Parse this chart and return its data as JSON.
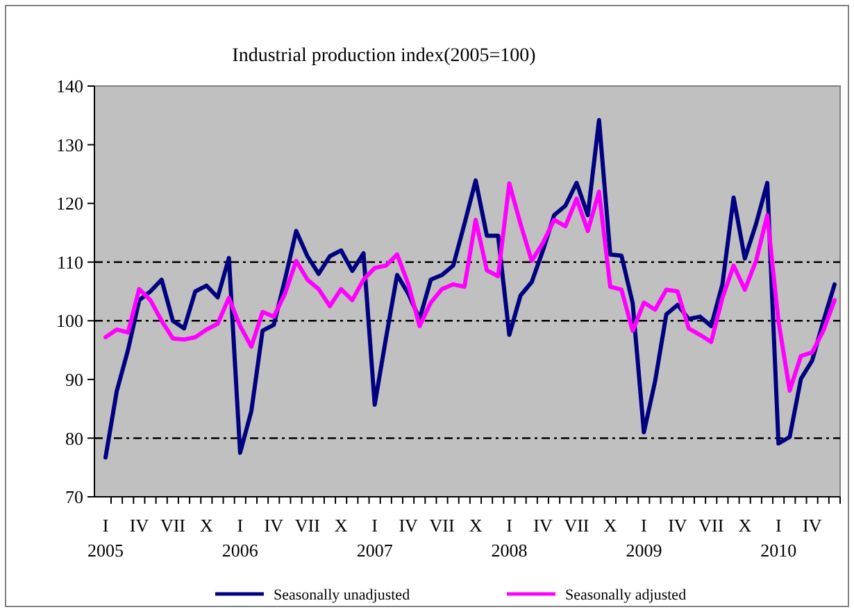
{
  "chart_data": {
    "type": "line",
    "title": "Industrial production index(2005=100)",
    "categories": [
      "I 2005",
      null,
      null,
      "IV",
      null,
      null,
      "VII",
      null,
      null,
      "X",
      null,
      null,
      "I 2006",
      null,
      null,
      "IV",
      null,
      null,
      "VII",
      null,
      null,
      "X",
      null,
      null,
      "I 2007",
      null,
      null,
      "IV",
      null,
      null,
      "VII",
      null,
      null,
      "X",
      null,
      null,
      "I 2008",
      null,
      null,
      "IV",
      null,
      null,
      "VII",
      null,
      null,
      "X",
      null,
      null,
      "I 2009",
      null,
      null,
      "IV",
      null,
      null,
      "VII",
      null,
      null,
      "X",
      null,
      null,
      "I 2010",
      null,
      null,
      "IV",
      null,
      null
    ],
    "series": [
      {
        "name": "Seasonally unadjusted",
        "color": "#000080",
        "values": [
          76.7,
          88,
          95,
          103.5,
          105,
          107,
          100,
          98.7,
          105,
          106,
          104,
          110.7,
          77.5,
          84.6,
          98.3,
          99.3,
          107,
          115.3,
          111,
          108,
          111,
          112,
          108.5,
          111.5,
          85.7,
          97,
          107.8,
          104.6,
          100.3,
          107,
          107.8,
          109.4,
          116.5,
          123.9,
          114.5,
          114.5,
          97.6,
          104.3,
          106.6,
          112,
          118,
          119.6,
          123.5,
          118,
          134.2,
          111.3,
          111.1,
          103,
          81,
          89.7,
          101.1,
          102.7,
          100.3,
          100.7,
          99.1,
          106.2,
          121,
          110.6,
          116.5,
          123.5,
          79.1,
          80.2,
          90.1,
          93.2,
          99.9,
          106.2
        ]
      },
      {
        "name": "Seasonally adjusted",
        "color": "#ff00ff",
        "values": [
          97.2,
          98.5,
          98,
          105.4,
          103.5,
          100,
          97,
          96.8,
          97.2,
          98.5,
          99.5,
          103.9,
          99.1,
          95.6,
          101.5,
          100.7,
          104.6,
          110.2,
          107,
          105.4,
          102.5,
          105.4,
          103.5,
          107,
          109,
          109.4,
          111.3,
          106.2,
          99.1,
          103.1,
          105.4,
          106.2,
          105.8,
          117.2,
          108.6,
          107.6,
          123.4,
          116.5,
          110.2,
          113.3,
          117.2,
          116.1,
          120.8,
          115.3,
          122,
          105.8,
          105.3,
          98.3,
          103.1,
          101.9,
          105.3,
          105,
          98.7,
          97.6,
          96.4,
          103.9,
          109.4,
          105.3,
          110.2,
          118,
          99.9,
          88.1,
          94,
          94.6,
          98.3,
          103.5
        ]
      }
    ],
    "ylim": [
      70,
      140
    ],
    "yticks": [
      70,
      80,
      90,
      100,
      110,
      120,
      130,
      140
    ],
    "ref_lines": [
      {
        "axis": "y",
        "value": 80,
        "color": "#000000",
        "line_style": "dashed"
      },
      {
        "axis": "y",
        "value": 100,
        "color": "#000000",
        "line_style": "dashed"
      },
      {
        "axis": "y",
        "value": 110,
        "color": "#000000",
        "line_style": "dashed"
      }
    ],
    "legend": "bottom",
    "marker": "none",
    "line_style": "solid"
  }
}
